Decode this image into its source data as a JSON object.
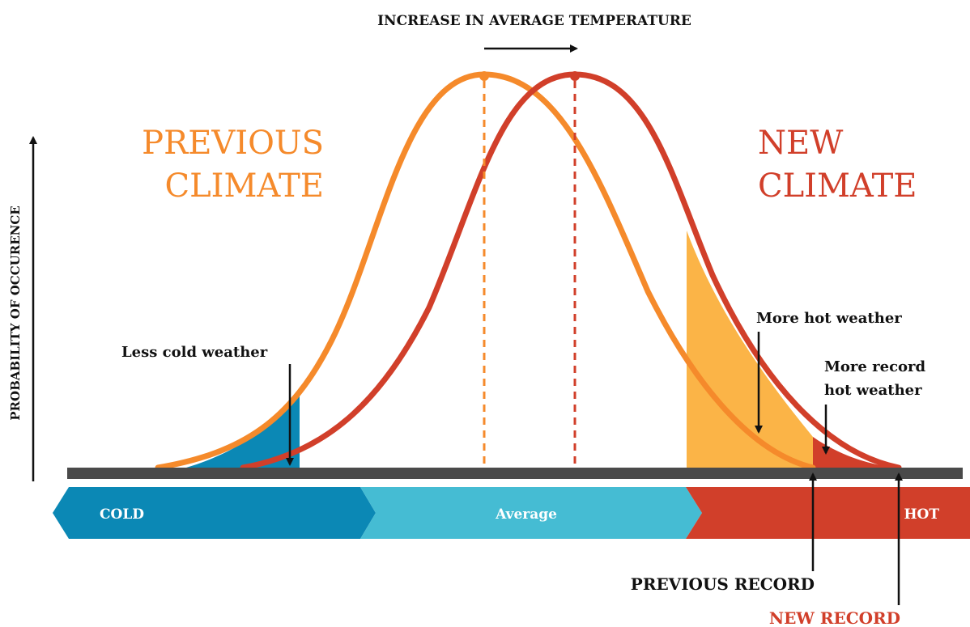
{
  "title": "INCREASE IN AVERAGE TEMPERATURE",
  "y_axis_label": "PROBABILITY OF OCCURENCE",
  "previous_climate": {
    "line1": "PREVIOUS",
    "line2": "CLIMATE"
  },
  "new_climate": {
    "line1": "NEW",
    "line2": "CLIMATE"
  },
  "annotations": {
    "less_cold": "Less cold weather",
    "more_hot": "More hot weather",
    "more_record_line1": "More record",
    "more_record_line2": "hot weather"
  },
  "bands": {
    "cold": "COLD",
    "average": "Average",
    "hot": "HOT"
  },
  "records": {
    "previous": "PREVIOUS RECORD",
    "new": "NEW RECORD"
  },
  "colors": {
    "previous_curve": "#f58a2b",
    "new_curve": "#d13f2a",
    "cold_band": "#0b88b5",
    "average_band": "#45bcd3",
    "hot_band": "#d13f2a",
    "hot_fill": "#fbb447",
    "baseline": "#4a4a4a",
    "text_dark": "#1a1a1a"
  }
}
